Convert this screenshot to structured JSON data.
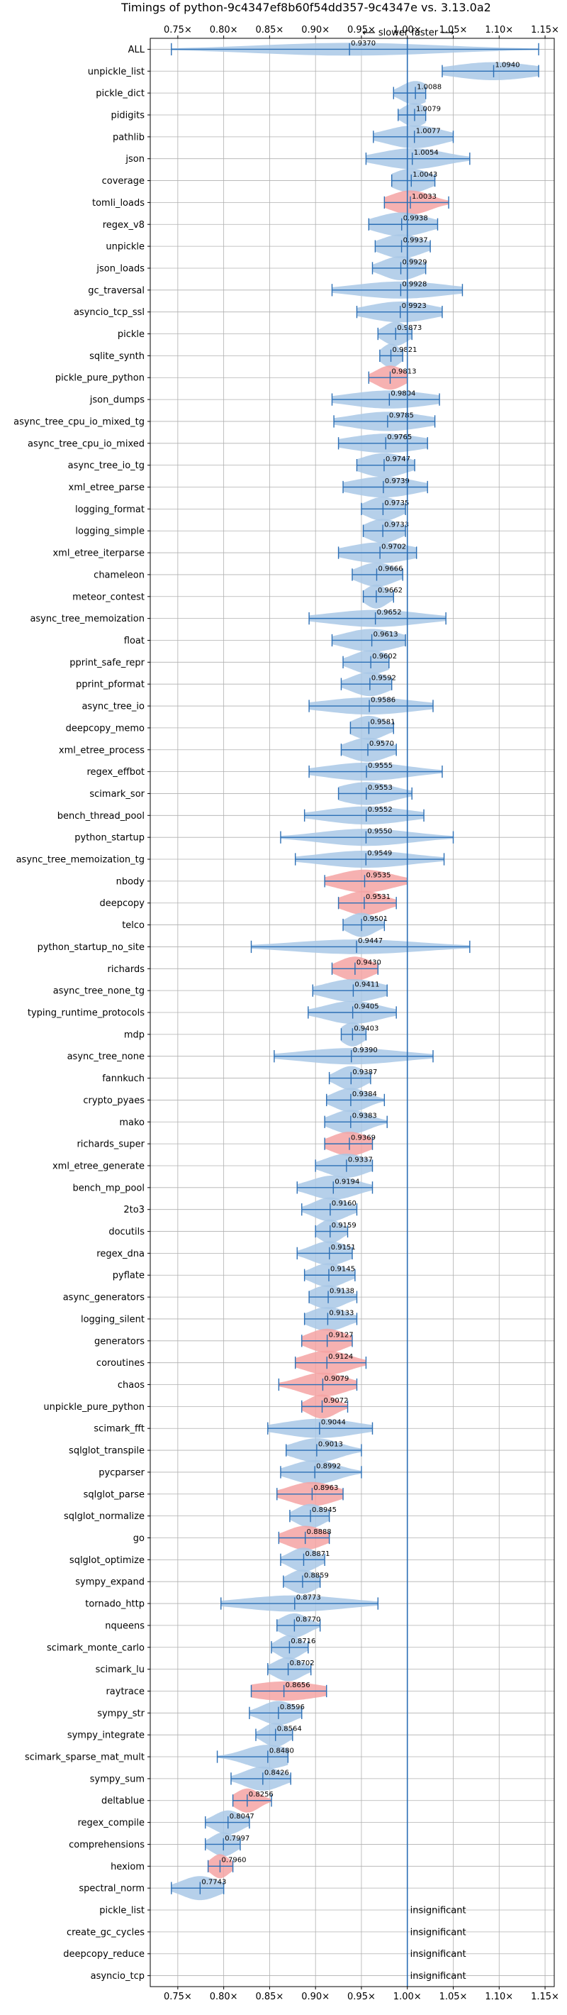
{
  "chart_data": {
    "type": "violin",
    "title": "Timings of python-9c4347ef8b60f54dd357-9c4347e vs. 3.13.0a2",
    "subtitle": "⟵ slower   faster ⟶",
    "xlim": [
      0.72,
      1.16
    ],
    "x_ticks": [
      0.75,
      0.8,
      0.85,
      0.9,
      0.95,
      1.0,
      1.05,
      1.1,
      1.15
    ],
    "x_tick_labels": [
      "0.75×",
      "0.80×",
      "0.85×",
      "0.90×",
      "0.95×",
      "1.00×",
      "1.05×",
      "1.10×",
      "1.15×"
    ],
    "reference_line": 1.0,
    "grid": true,
    "colors": {
      "faster": "#a9c8e6",
      "slower": "#f5a3a3",
      "line": "#2c6fb5",
      "grid": "#b0b0b0"
    },
    "insignificant_label": "insignificant",
    "benchmarks": [
      {
        "name": "ALL",
        "value": 0.937,
        "label": "0.9370",
        "min": 0.743,
        "max": 1.143,
        "spread": 0.1,
        "status": "faster"
      },
      {
        "name": "unpickle_list",
        "value": 1.094,
        "label": "1.0940",
        "min": 1.038,
        "max": 1.143,
        "spread": 0.045,
        "status": "faster"
      },
      {
        "name": "pickle_dict",
        "value": 1.0088,
        "label": "1.0088",
        "min": 0.985,
        "max": 1.02,
        "spread": 0.015,
        "status": "faster"
      },
      {
        "name": "pidigits",
        "value": 1.0079,
        "label": "1.0079",
        "min": 0.99,
        "max": 1.02,
        "spread": 0.013,
        "status": "faster"
      },
      {
        "name": "pathlib",
        "value": 1.0077,
        "label": "1.0077",
        "min": 0.963,
        "max": 1.05,
        "spread": 0.03,
        "status": "faster"
      },
      {
        "name": "json",
        "value": 1.0054,
        "label": "1.0054",
        "min": 0.955,
        "max": 1.068,
        "spread": 0.035,
        "status": "faster"
      },
      {
        "name": "coverage",
        "value": 1.0043,
        "label": "1.0043",
        "min": 0.983,
        "max": 1.03,
        "spread": 0.02,
        "status": "faster"
      },
      {
        "name": "tomli_loads",
        "value": 1.0033,
        "label": "1.0033",
        "min": 0.975,
        "max": 1.045,
        "spread": 0.022,
        "status": "slower"
      },
      {
        "name": "regex_v8",
        "value": 0.9938,
        "label": "0.9938",
        "min": 0.958,
        "max": 1.033,
        "spread": 0.028,
        "status": "faster"
      },
      {
        "name": "unpickle",
        "value": 0.9937,
        "label": "0.9937",
        "min": 0.965,
        "max": 1.025,
        "spread": 0.022,
        "status": "faster"
      },
      {
        "name": "json_loads",
        "value": 0.9929,
        "label": "0.9929",
        "min": 0.962,
        "max": 1.02,
        "spread": 0.02,
        "status": "faster"
      },
      {
        "name": "gc_traversal",
        "value": 0.9928,
        "label": "0.9928",
        "min": 0.918,
        "max": 1.06,
        "spread": 0.05,
        "status": "faster"
      },
      {
        "name": "asyncio_tcp_ssl",
        "value": 0.9923,
        "label": "0.9923",
        "min": 0.945,
        "max": 1.038,
        "spread": 0.035,
        "status": "faster"
      },
      {
        "name": "pickle",
        "value": 0.9873,
        "label": "0.9873",
        "min": 0.968,
        "max": 1.005,
        "spread": 0.013,
        "status": "faster"
      },
      {
        "name": "sqlite_synth",
        "value": 0.9821,
        "label": "0.9821",
        "min": 0.97,
        "max": 0.995,
        "spread": 0.01,
        "status": "faster"
      },
      {
        "name": "pickle_pure_python",
        "value": 0.9813,
        "label": "0.9813",
        "min": 0.958,
        "max": 1.0,
        "spread": 0.015,
        "status": "slower"
      },
      {
        "name": "json_dumps",
        "value": 0.9804,
        "label": "0.9804",
        "min": 0.918,
        "max": 1.035,
        "spread": 0.045,
        "status": "faster"
      },
      {
        "name": "async_tree_cpu_io_mixed_tg",
        "value": 0.9785,
        "label": "0.9785",
        "min": 0.92,
        "max": 1.03,
        "spread": 0.04,
        "status": "faster"
      },
      {
        "name": "async_tree_cpu_io_mixed",
        "value": 0.9765,
        "label": "0.9765",
        "min": 0.925,
        "max": 1.022,
        "spread": 0.04,
        "status": "faster"
      },
      {
        "name": "async_tree_io_tg",
        "value": 0.9747,
        "label": "0.9747",
        "min": 0.945,
        "max": 1.008,
        "spread": 0.025,
        "status": "faster"
      },
      {
        "name": "xml_etree_parse",
        "value": 0.9739,
        "label": "0.9739",
        "min": 0.93,
        "max": 1.022,
        "spread": 0.035,
        "status": "faster"
      },
      {
        "name": "logging_format",
        "value": 0.9735,
        "label": "0.9735",
        "min": 0.95,
        "max": 0.998,
        "spread": 0.018,
        "status": "faster"
      },
      {
        "name": "logging_simple",
        "value": 0.9733,
        "label": "0.9733",
        "min": 0.952,
        "max": 0.998,
        "spread": 0.018,
        "status": "faster"
      },
      {
        "name": "xml_etree_iterparse",
        "value": 0.9702,
        "label": "0.9702",
        "min": 0.925,
        "max": 1.01,
        "spread": 0.035,
        "status": "faster"
      },
      {
        "name": "chameleon",
        "value": 0.9666,
        "label": "0.9666",
        "min": 0.94,
        "max": 0.995,
        "spread": 0.02,
        "status": "faster"
      },
      {
        "name": "meteor_contest",
        "value": 0.9662,
        "label": "0.9662",
        "min": 0.952,
        "max": 0.985,
        "spread": 0.012,
        "status": "faster"
      },
      {
        "name": "async_tree_memoization",
        "value": 0.9652,
        "label": "0.9652",
        "min": 0.893,
        "max": 1.042,
        "spread": 0.05,
        "status": "faster"
      },
      {
        "name": "float",
        "value": 0.9613,
        "label": "0.9613",
        "min": 0.918,
        "max": 0.998,
        "spread": 0.03,
        "status": "faster"
      },
      {
        "name": "pprint_safe_repr",
        "value": 0.9602,
        "label": "0.9602",
        "min": 0.93,
        "max": 0.98,
        "spread": 0.02,
        "status": "faster"
      },
      {
        "name": "pprint_pformat",
        "value": 0.9592,
        "label": "0.9592",
        "min": 0.928,
        "max": 0.983,
        "spread": 0.02,
        "status": "faster"
      },
      {
        "name": "async_tree_io",
        "value": 0.9586,
        "label": "0.9586",
        "min": 0.893,
        "max": 1.028,
        "spread": 0.05,
        "status": "faster"
      },
      {
        "name": "deepcopy_memo",
        "value": 0.9581,
        "label": "0.9581",
        "min": 0.938,
        "max": 0.985,
        "spread": 0.018,
        "status": "faster"
      },
      {
        "name": "xml_etree_process",
        "value": 0.957,
        "label": "0.9570",
        "min": 0.928,
        "max": 0.988,
        "spread": 0.022,
        "status": "faster"
      },
      {
        "name": "regex_effbot",
        "value": 0.9555,
        "label": "0.9555",
        "min": 0.893,
        "max": 1.038,
        "spread": 0.045,
        "status": "faster"
      },
      {
        "name": "scimark_sor",
        "value": 0.9553,
        "label": "0.9553",
        "min": 0.925,
        "max": 1.005,
        "spread": 0.03,
        "status": "faster"
      },
      {
        "name": "bench_thread_pool",
        "value": 0.9552,
        "label": "0.9552",
        "min": 0.888,
        "max": 1.018,
        "spread": 0.045,
        "status": "faster"
      },
      {
        "name": "python_startup",
        "value": 0.955,
        "label": "0.9550",
        "min": 0.862,
        "max": 1.05,
        "spread": 0.05,
        "status": "faster"
      },
      {
        "name": "async_tree_memoization_tg",
        "value": 0.9549,
        "label": "0.9549",
        "min": 0.878,
        "max": 1.04,
        "spread": 0.05,
        "status": "faster"
      },
      {
        "name": "nbody",
        "value": 0.9535,
        "label": "0.9535",
        "min": 0.91,
        "max": 1.0,
        "spread": 0.03,
        "status": "slower"
      },
      {
        "name": "deepcopy",
        "value": 0.9531,
        "label": "0.9531",
        "min": 0.925,
        "max": 0.988,
        "spread": 0.022,
        "status": "slower"
      },
      {
        "name": "telco",
        "value": 0.9501,
        "label": "0.9501",
        "min": 0.93,
        "max": 0.975,
        "spread": 0.015,
        "status": "faster"
      },
      {
        "name": "python_startup_no_site",
        "value": 0.9447,
        "label": "0.9447",
        "min": 0.83,
        "max": 1.068,
        "spread": 0.07,
        "status": "faster"
      },
      {
        "name": "richards",
        "value": 0.943,
        "label": "0.9430",
        "min": 0.918,
        "max": 0.968,
        "spread": 0.018,
        "status": "slower"
      },
      {
        "name": "async_tree_none_tg",
        "value": 0.9411,
        "label": "0.9411",
        "min": 0.897,
        "max": 0.978,
        "spread": 0.03,
        "status": "faster"
      },
      {
        "name": "typing_runtime_protocols",
        "value": 0.9405,
        "label": "0.9405",
        "min": 0.892,
        "max": 0.988,
        "spread": 0.03,
        "status": "faster"
      },
      {
        "name": "mdp",
        "value": 0.9403,
        "label": "0.9403",
        "min": 0.928,
        "max": 0.955,
        "spread": 0.012,
        "status": "faster"
      },
      {
        "name": "async_tree_none",
        "value": 0.939,
        "label": "0.9390",
        "min": 0.855,
        "max": 1.028,
        "spread": 0.055,
        "status": "faster"
      },
      {
        "name": "fannkuch",
        "value": 0.9387,
        "label": "0.9387",
        "min": 0.915,
        "max": 0.96,
        "spread": 0.015,
        "status": "faster"
      },
      {
        "name": "crypto_pyaes",
        "value": 0.9384,
        "label": "0.9384",
        "min": 0.912,
        "max": 0.975,
        "spread": 0.018,
        "status": "faster"
      },
      {
        "name": "mako",
        "value": 0.9383,
        "label": "0.9383",
        "min": 0.91,
        "max": 0.978,
        "spread": 0.02,
        "status": "faster"
      },
      {
        "name": "richards_super",
        "value": 0.9369,
        "label": "0.9369",
        "min": 0.91,
        "max": 0.962,
        "spread": 0.02,
        "status": "slower"
      },
      {
        "name": "xml_etree_generate",
        "value": 0.9337,
        "label": "0.9337",
        "min": 0.9,
        "max": 0.962,
        "spread": 0.022,
        "status": "faster"
      },
      {
        "name": "bench_mp_pool",
        "value": 0.9194,
        "label": "0.9194",
        "min": 0.88,
        "max": 0.962,
        "spread": 0.025,
        "status": "faster"
      },
      {
        "name": "2to3",
        "value": 0.916,
        "label": "0.9160",
        "min": 0.885,
        "max": 0.945,
        "spread": 0.018,
        "status": "faster"
      },
      {
        "name": "docutils",
        "value": 0.9159,
        "label": "0.9159",
        "min": 0.9,
        "max": 0.935,
        "spread": 0.012,
        "status": "faster"
      },
      {
        "name": "regex_dna",
        "value": 0.9151,
        "label": "0.9151",
        "min": 0.88,
        "max": 0.94,
        "spread": 0.02,
        "status": "faster"
      },
      {
        "name": "pyflate",
        "value": 0.9145,
        "label": "0.9145",
        "min": 0.888,
        "max": 0.943,
        "spread": 0.018,
        "status": "faster"
      },
      {
        "name": "async_generators",
        "value": 0.9138,
        "label": "0.9138",
        "min": 0.893,
        "max": 0.945,
        "spread": 0.018,
        "status": "faster"
      },
      {
        "name": "logging_silent",
        "value": 0.9133,
        "label": "0.9133",
        "min": 0.888,
        "max": 0.945,
        "spread": 0.02,
        "status": "faster"
      },
      {
        "name": "generators",
        "value": 0.9127,
        "label": "0.9127",
        "min": 0.885,
        "max": 0.94,
        "spread": 0.02,
        "status": "slower"
      },
      {
        "name": "coroutines",
        "value": 0.9124,
        "label": "0.9124",
        "min": 0.878,
        "max": 0.955,
        "spread": 0.025,
        "status": "slower"
      },
      {
        "name": "chaos",
        "value": 0.9079,
        "label": "0.9079",
        "min": 0.86,
        "max": 0.945,
        "spread": 0.025,
        "status": "slower"
      },
      {
        "name": "unpickle_pure_python",
        "value": 0.9072,
        "label": "0.9072",
        "min": 0.885,
        "max": 0.935,
        "spread": 0.015,
        "status": "slower"
      },
      {
        "name": "scimark_fft",
        "value": 0.9044,
        "label": "0.9044",
        "min": 0.848,
        "max": 0.962,
        "spread": 0.04,
        "status": "faster"
      },
      {
        "name": "sqlglot_transpile",
        "value": 0.9013,
        "label": "0.9013",
        "min": 0.868,
        "max": 0.95,
        "spread": 0.025,
        "status": "faster"
      },
      {
        "name": "pycparser",
        "value": 0.8992,
        "label": "0.8992",
        "min": 0.862,
        "max": 0.95,
        "spread": 0.025,
        "status": "faster"
      },
      {
        "name": "sqlglot_parse",
        "value": 0.8963,
        "label": "0.8963",
        "min": 0.858,
        "max": 0.93,
        "spread": 0.025,
        "status": "slower"
      },
      {
        "name": "sqlglot_normalize",
        "value": 0.8945,
        "label": "0.8945",
        "min": 0.872,
        "max": 0.915,
        "spread": 0.015,
        "status": "faster"
      },
      {
        "name": "go",
        "value": 0.8888,
        "label": "0.8888",
        "min": 0.86,
        "max": 0.915,
        "spread": 0.02,
        "status": "slower"
      },
      {
        "name": "sqlglot_optimize",
        "value": 0.8871,
        "label": "0.8871",
        "min": 0.862,
        "max": 0.91,
        "spread": 0.015,
        "status": "faster"
      },
      {
        "name": "sympy_expand",
        "value": 0.8859,
        "label": "0.8859",
        "min": 0.865,
        "max": 0.905,
        "spread": 0.015,
        "status": "faster"
      },
      {
        "name": "tornado_http",
        "value": 0.8773,
        "label": "0.8773",
        "min": 0.797,
        "max": 0.968,
        "spread": 0.055,
        "status": "faster"
      },
      {
        "name": "nqueens",
        "value": 0.877,
        "label": "0.8770",
        "min": 0.858,
        "max": 0.905,
        "spread": 0.015,
        "status": "faster"
      },
      {
        "name": "scimark_monte_carlo",
        "value": 0.8716,
        "label": "0.8716",
        "min": 0.852,
        "max": 0.892,
        "spread": 0.013,
        "status": "faster"
      },
      {
        "name": "scimark_lu",
        "value": 0.8702,
        "label": "0.8702",
        "min": 0.848,
        "max": 0.895,
        "spread": 0.015,
        "status": "faster"
      },
      {
        "name": "raytrace",
        "value": 0.8656,
        "label": "0.8656",
        "min": 0.83,
        "max": 0.912,
        "spread": 0.04,
        "status": "slower"
      },
      {
        "name": "sympy_str",
        "value": 0.8596,
        "label": "0.8596",
        "min": 0.828,
        "max": 0.885,
        "spread": 0.018,
        "status": "faster"
      },
      {
        "name": "sympy_integrate",
        "value": 0.8564,
        "label": "0.8564",
        "min": 0.835,
        "max": 0.875,
        "spread": 0.013,
        "status": "faster"
      },
      {
        "name": "scimark_sparse_mat_mult",
        "value": 0.848,
        "label": "0.8480",
        "min": 0.793,
        "max": 0.87,
        "spread": 0.025,
        "status": "faster"
      },
      {
        "name": "sympy_sum",
        "value": 0.8426,
        "label": "0.8426",
        "min": 0.808,
        "max": 0.873,
        "spread": 0.02,
        "status": "faster"
      },
      {
        "name": "deltablue",
        "value": 0.8256,
        "label": "0.8256",
        "min": 0.81,
        "max": 0.852,
        "spread": 0.013,
        "status": "slower"
      },
      {
        "name": "regex_compile",
        "value": 0.8047,
        "label": "0.8047",
        "min": 0.78,
        "max": 0.828,
        "spread": 0.015,
        "status": "faster"
      },
      {
        "name": "comprehensions",
        "value": 0.7997,
        "label": "0.7997",
        "min": 0.78,
        "max": 0.818,
        "spread": 0.013,
        "status": "faster"
      },
      {
        "name": "hexiom",
        "value": 0.796,
        "label": "0.7960",
        "min": 0.783,
        "max": 0.81,
        "spread": 0.01,
        "status": "slower"
      },
      {
        "name": "spectral_norm",
        "value": 0.7743,
        "label": "0.7743",
        "min": 0.743,
        "max": 0.8,
        "spread": 0.02,
        "status": "faster"
      },
      {
        "name": "pickle_list",
        "status": "insignificant"
      },
      {
        "name": "create_gc_cycles",
        "status": "insignificant"
      },
      {
        "name": "deepcopy_reduce",
        "status": "insignificant"
      },
      {
        "name": "asyncio_tcp",
        "status": "insignificant"
      }
    ]
  }
}
